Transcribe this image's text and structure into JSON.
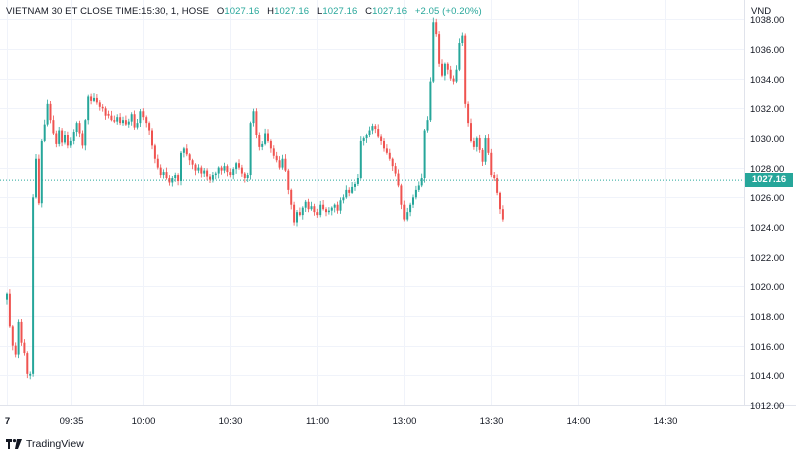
{
  "header": {
    "symbol_text": "VIETNAM 30 ET CLOSE TIME:15:30, 1, HOSE",
    "open_label": "O",
    "open_value": "1027.16",
    "high_label": "H",
    "high_value": "1027.16",
    "low_label": "L",
    "low_value": "1027.16",
    "close_label": "C",
    "close_value": "1027.16",
    "change_text": "+2.05 (+0.20%)"
  },
  "currency": "VND",
  "last_price_label": "1027.16",
  "branding": {
    "name": "TradingView",
    "logo_icon": "tradingview-logo-icon"
  },
  "colors": {
    "up": "#26a69a",
    "down": "#ef5350",
    "grid": "#f0f3fa",
    "axis_text": "#131722"
  },
  "chart_data": {
    "type": "candlestick",
    "ylim": [
      1012,
      1039.3
    ],
    "y_ticks": [
      "1012.00",
      "1014.00",
      "1016.00",
      "1018.00",
      "1020.00",
      "1022.00",
      "1024.00",
      "1026.00",
      "1028.00",
      "1030.00",
      "1032.00",
      "1034.00",
      "1036.00",
      "1038.00"
    ],
    "x_ticks": [
      {
        "label": "7",
        "bar": 0
      },
      {
        "label": "09:35",
        "bar": 22
      },
      {
        "label": "10:00",
        "bar": 47
      },
      {
        "label": "10:30",
        "bar": 77
      },
      {
        "label": "11:00",
        "bar": 107
      },
      {
        "label": "13:00",
        "bar": 137
      },
      {
        "label": "13:30",
        "bar": 167
      },
      {
        "label": "14:00",
        "bar": 197
      },
      {
        "label": "14:30",
        "bar": 227
      }
    ],
    "last_price": 1027.16,
    "close_path": [
      [
        0,
        1019.5
      ],
      [
        1,
        1017.3
      ],
      [
        2,
        1016.0
      ],
      [
        3,
        1015.4
      ],
      [
        4,
        1017.6
      ],
      [
        5,
        1016.2
      ],
      [
        6,
        1015.5
      ],
      [
        7,
        1014.1
      ],
      [
        8,
        1014.1
      ],
      [
        9,
        1026.0
      ],
      [
        10,
        1028.6
      ],
      [
        11,
        1025.6
      ],
      [
        12,
        1029.8
      ],
      [
        13,
        1030.9
      ],
      [
        14,
        1032.3
      ],
      [
        15,
        1031.2
      ],
      [
        16,
        1030.3
      ],
      [
        17,
        1029.6
      ],
      [
        18,
        1030.5
      ],
      [
        19,
        1029.7
      ],
      [
        20,
        1030.2
      ],
      [
        21,
        1029.5
      ],
      [
        22,
        1029.8
      ],
      [
        23,
        1030.4
      ],
      [
        24,
        1031.0
      ],
      [
        25,
        1030.3
      ],
      [
        26,
        1029.5
      ],
      [
        27,
        1031.2
      ],
      [
        28,
        1032.8
      ],
      [
        29,
        1032.5
      ],
      [
        30,
        1032.7
      ],
      [
        31,
        1032.4
      ],
      [
        32,
        1032.1
      ],
      [
        33,
        1032.0
      ],
      [
        34,
        1031.5
      ],
      [
        35,
        1031.5
      ],
      [
        36,
        1031.2
      ],
      [
        37,
        1031.1
      ],
      [
        38,
        1031.4
      ],
      [
        39,
        1031.0
      ],
      [
        40,
        1031.2
      ],
      [
        41,
        1030.9
      ],
      [
        42,
        1031.1
      ],
      [
        43,
        1031.6
      ],
      [
        44,
        1030.7
      ],
      [
        45,
        1031.0
      ],
      [
        46,
        1031.8
      ],
      [
        47,
        1031.4
      ],
      [
        48,
        1031.0
      ],
      [
        49,
        1030.5
      ],
      [
        50,
        1029.5
      ],
      [
        51,
        1028.6
      ],
      [
        52,
        1028.0
      ],
      [
        53,
        1027.5
      ],
      [
        54,
        1027.7
      ],
      [
        55,
        1027.3
      ],
      [
        56,
        1027.0
      ],
      [
        57,
        1027.3
      ],
      [
        58,
        1027.5
      ],
      [
        59,
        1027.1
      ],
      [
        60,
        1029.0
      ],
      [
        61,
        1029.3
      ],
      [
        62,
        1028.9
      ],
      [
        63,
        1028.5
      ],
      [
        64,
        1028.2
      ],
      [
        65,
        1027.8
      ],
      [
        66,
        1028.0
      ],
      [
        67,
        1027.6
      ],
      [
        68,
        1027.8
      ],
      [
        69,
        1027.4
      ],
      [
        70,
        1027.2
      ],
      [
        71,
        1027.5
      ],
      [
        72,
        1027.6
      ],
      [
        73,
        1028.0
      ],
      [
        74,
        1027.8
      ],
      [
        75,
        1028.1
      ],
      [
        76,
        1027.7
      ],
      [
        77,
        1027.5
      ],
      [
        78,
        1027.9
      ],
      [
        79,
        1028.3
      ],
      [
        80,
        1028.0
      ],
      [
        81,
        1027.6
      ],
      [
        82,
        1027.3
      ],
      [
        83,
        1027.5
      ],
      [
        84,
        1031.0
      ],
      [
        85,
        1031.8
      ],
      [
        86,
        1030.2
      ],
      [
        87,
        1029.4
      ],
      [
        88,
        1029.6
      ],
      [
        89,
        1030.3
      ],
      [
        90,
        1029.8
      ],
      [
        91,
        1029.3
      ],
      [
        92,
        1028.8
      ],
      [
        93,
        1028.5
      ],
      [
        94,
        1028.0
      ],
      [
        95,
        1028.6
      ],
      [
        96,
        1027.8
      ],
      [
        97,
        1026.5
      ],
      [
        98,
        1025.5
      ],
      [
        99,
        1024.3
      ],
      [
        100,
        1025.0
      ],
      [
        101,
        1024.8
      ],
      [
        102,
        1025.3
      ],
      [
        103,
        1025.7
      ],
      [
        104,
        1025.2
      ],
      [
        105,
        1025.4
      ],
      [
        106,
        1025.0
      ],
      [
        107,
        1024.8
      ],
      [
        108,
        1025.5
      ],
      [
        109,
        1025.2
      ],
      [
        110,
        1025.0
      ],
      [
        111,
        1025.1
      ],
      [
        112,
        1025.3
      ],
      [
        113,
        1025.5
      ],
      [
        114,
        1025.1
      ],
      [
        115,
        1025.8
      ],
      [
        116,
        1026.0
      ],
      [
        117,
        1026.5
      ],
      [
        118,
        1026.3
      ],
      [
        119,
        1026.7
      ],
      [
        120,
        1026.9
      ],
      [
        121,
        1027.3
      ],
      [
        122,
        1029.8
      ],
      [
        123,
        1030.0
      ],
      [
        124,
        1030.2
      ],
      [
        125,
        1030.5
      ],
      [
        126,
        1030.8
      ],
      [
        127,
        1030.6
      ],
      [
        128,
        1030.1
      ],
      [
        129,
        1029.8
      ],
      [
        130,
        1029.3
      ],
      [
        131,
        1029.0
      ],
      [
        132,
        1028.6
      ],
      [
        133,
        1028.1
      ],
      [
        134,
        1027.6
      ],
      [
        135,
        1026.8
      ],
      [
        136,
        1025.5
      ],
      [
        137,
        1024.5
      ],
      [
        138,
        1025.0
      ],
      [
        139,
        1025.5
      ],
      [
        140,
        1026.0
      ],
      [
        141,
        1026.5
      ],
      [
        142,
        1026.8
      ],
      [
        143,
        1027.3
      ],
      [
        144,
        1030.5
      ],
      [
        145,
        1031.2
      ],
      [
        146,
        1033.8
      ],
      [
        147,
        1037.8
      ],
      [
        148,
        1037.0
      ],
      [
        149,
        1035.0
      ],
      [
        150,
        1034.2
      ],
      [
        151,
        1035.0
      ],
      [
        152,
        1034.6
      ],
      [
        153,
        1034.0
      ],
      [
        154,
        1033.8
      ],
      [
        155,
        1034.6
      ],
      [
        156,
        1036.4
      ],
      [
        157,
        1036.9
      ],
      [
        158,
        1032.3
      ],
      [
        159,
        1031.0
      ],
      [
        160,
        1029.8
      ],
      [
        161,
        1029.4
      ],
      [
        162,
        1030.0
      ],
      [
        163,
        1029.2
      ],
      [
        164,
        1028.4
      ],
      [
        165,
        1030.0
      ],
      [
        166,
        1029.0
      ],
      [
        167,
        1027.5
      ],
      [
        168,
        1027.3
      ],
      [
        169,
        1026.3
      ],
      [
        170,
        1025.2
      ],
      [
        171,
        1024.5
      ]
    ]
  }
}
